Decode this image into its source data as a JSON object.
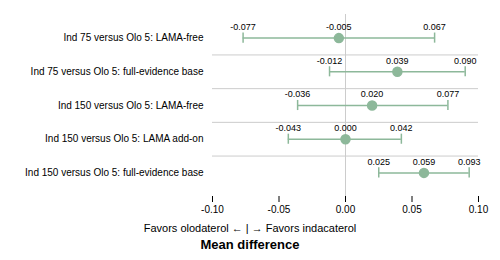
{
  "chart_data": {
    "type": "forest",
    "xlabel": "Mean difference",
    "annotations": [
      "Favors olodaterol ← | → Favors indacaterol"
    ],
    "categories": [
      "Ind 75 versus Olo 5: LAMA-free",
      "Ind 75 versus Olo 5: full-evidence base",
      "Ind 150 versus Olo 5: LAMA-free",
      "Ind 150 versus Olo 5: LAMA add-on",
      "Ind 150 versus Olo 5: full-evidence base"
    ],
    "values": [
      -0.005,
      0.039,
      0.02,
      0.0,
      0.059
    ],
    "value_labels": [
      "-0.005",
      "0.039",
      "0.020",
      "0.000",
      "0.059"
    ],
    "ci_low": [
      -0.077,
      -0.012,
      -0.036,
      -0.043,
      0.025
    ],
    "ci_low_labels": [
      "-0.077",
      "-0.012",
      "-0.036",
      "-0.043",
      "0.025"
    ],
    "ci_high": [
      0.067,
      0.09,
      0.077,
      0.042,
      0.093
    ],
    "ci_high_labels": [
      "0.067",
      "0.090",
      "0.077",
      "0.042",
      "0.093"
    ],
    "xlim": [
      -0.1,
      0.1
    ],
    "xticks": [
      {
        "value": -0.1,
        "label": "-0.10"
      },
      {
        "value": -0.05,
        "label": "-0.05"
      },
      {
        "value": 0.0,
        "label": "0.00"
      },
      {
        "value": 0.05,
        "label": "0.05"
      },
      {
        "value": 0.1,
        "label": "0.10"
      }
    ],
    "grid": true,
    "data_labels": true,
    "color": "#8db89a",
    "marker": "circle"
  }
}
